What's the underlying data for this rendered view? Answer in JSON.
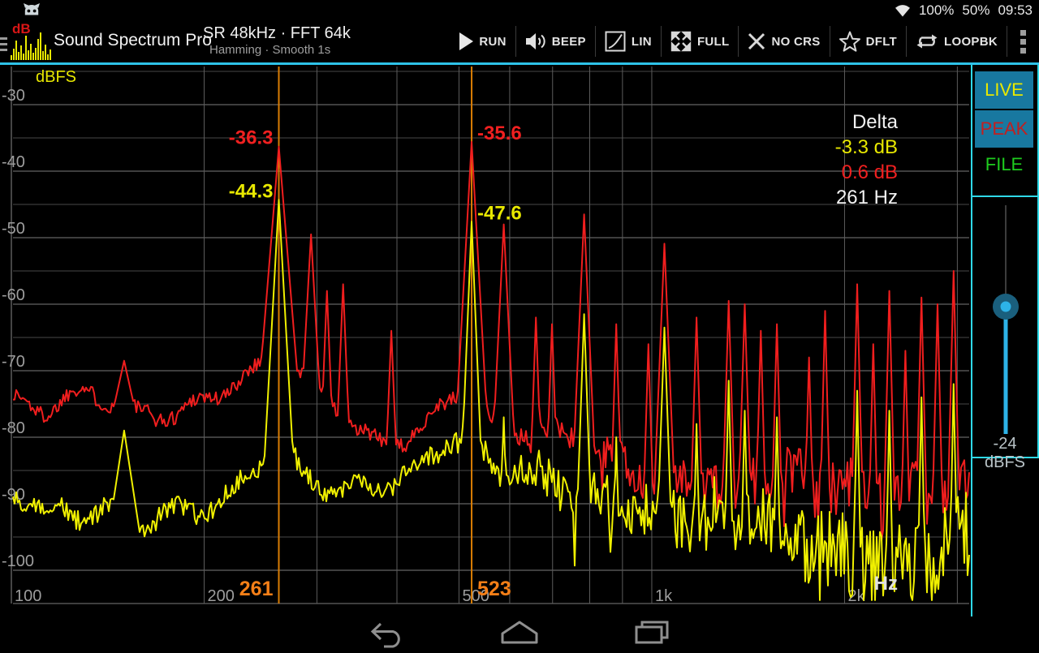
{
  "status_bar": {
    "battery": "100%",
    "second_level": "50%",
    "clock": "09:53"
  },
  "action_bar": {
    "app_title": "Sound Spectrum Pro",
    "logo_text": "dB",
    "logo_bars": [
      6,
      14,
      24,
      10,
      18,
      8,
      30,
      12,
      20,
      9,
      15,
      26,
      34,
      11,
      19,
      7,
      13
    ],
    "line1": "SR 48kHz · FFT 64k",
    "line2": "Hamming · Smooth 1s",
    "actions": [
      {
        "label": "RUN",
        "icon": "play"
      },
      {
        "label": "BEEP",
        "icon": "speaker"
      },
      {
        "label": "LIN",
        "icon": "lin-curve"
      },
      {
        "label": "FULL",
        "icon": "expand"
      },
      {
        "label": "NO CRS",
        "icon": "x-cross"
      },
      {
        "label": "DFLT",
        "icon": "star"
      },
      {
        "label": "LOOPBK",
        "icon": "loop"
      }
    ]
  },
  "sidebar": {
    "live": "LIVE",
    "peak": "PEAK",
    "file": "FILE",
    "slider_value": "-24 dBFS",
    "accent_color": "#2fd9e8",
    "button_bg": "#1878a0",
    "slider_color": "#2db3e8"
  },
  "delta_panel": {
    "title": "Delta",
    "live_delta": "-3.3 dB",
    "peak_delta": "0.6 dB",
    "freq_delta": "261 Hz"
  },
  "chart_data": {
    "type": "line",
    "y_axis": {
      "label": "dBFS",
      "top_db": -24,
      "bottom_db": -105,
      "grid_step_db": 5,
      "tick_labels": [
        -30,
        -40,
        -50,
        -60,
        -70,
        -80,
        -90,
        -100
      ]
    },
    "x_axis": {
      "label": "Hz",
      "scale": "log",
      "min_hz": 100,
      "max_hz": 3100,
      "gridlines_hz": [
        100,
        200,
        300,
        400,
        500,
        600,
        700,
        800,
        900,
        1000,
        2000,
        3000
      ],
      "tick_labels": [
        {
          "hz": 100,
          "label": "100"
        },
        {
          "hz": 200,
          "label": "200"
        },
        {
          "hz": 500,
          "label": "500"
        },
        {
          "hz": 1000,
          "label": "1k"
        },
        {
          "hz": 2000,
          "label": "2k"
        }
      ]
    },
    "cursors": [
      {
        "freq_hz": 261.6,
        "label": "261",
        "side": "left"
      },
      {
        "freq_hz": 523.25,
        "label": "523",
        "side": "right"
      }
    ],
    "cursor_color": "#d97d04",
    "cursor_label_color": "#f57f17",
    "peak_annotations": [
      {
        "text": "-36.3",
        "db": -36.3,
        "cursor": 0,
        "color": "#f02020"
      },
      {
        "text": "-44.3",
        "db": -44.3,
        "cursor": 0,
        "color": "#e8e800"
      },
      {
        "text": "-35.6",
        "db": -35.6,
        "cursor": 1,
        "color": "#f02020"
      },
      {
        "text": "-47.6",
        "db": -47.6,
        "cursor": 1,
        "color": "#e8e800"
      }
    ],
    "series": [
      {
        "name": "PEAK",
        "color": "#f01e1e",
        "seed": 1337,
        "noise_base": 1.2,
        "noise_grow_from": 550,
        "noise_grow": 0.0075,
        "dip_chance": 0.05,
        "dip_depth": 7,
        "floor": [
          [
            100,
            -75
          ],
          [
            114,
            -77
          ],
          [
            132,
            -74
          ],
          [
            157,
            -76
          ],
          [
            182,
            -75
          ],
          [
            205,
            -73
          ],
          [
            230,
            -71
          ],
          [
            251,
            -70
          ],
          [
            274,
            -70
          ],
          [
            309,
            -75
          ],
          [
            347,
            -79
          ],
          [
            378,
            -81
          ],
          [
            412,
            -79
          ],
          [
            450,
            -76
          ],
          [
            492,
            -73
          ],
          [
            537,
            -76
          ],
          [
            587,
            -79
          ],
          [
            660,
            -81
          ],
          [
            741,
            -81
          ],
          [
            832,
            -83
          ],
          [
            934,
            -84
          ],
          [
            1048,
            -85
          ],
          [
            1177,
            -86
          ],
          [
            1322,
            -87
          ],
          [
            1531,
            -87
          ],
          [
            1773,
            -88
          ],
          [
            2053,
            -88
          ],
          [
            2377,
            -89
          ],
          [
            2753,
            -88
          ],
          [
            3100,
            -85
          ]
        ],
        "peaks": [
          [
            150,
            -68.5,
            0.55
          ],
          [
            261.6,
            -36.3,
            1.5
          ],
          [
            293.7,
            -49.5,
            2.2
          ],
          [
            311,
            -58,
            3
          ],
          [
            329.6,
            -57,
            3
          ],
          [
            392,
            -64,
            3
          ],
          [
            523.25,
            -35.6,
            2.2
          ],
          [
            587.3,
            -48,
            2.5
          ],
          [
            659.3,
            -62,
            3.5
          ],
          [
            698.5,
            -63,
            3.5
          ],
          [
            784,
            -46.5,
            2.8
          ],
          [
            880,
            -63,
            4
          ],
          [
            987.8,
            -66,
            4
          ],
          [
            1046.5,
            -50.9,
            3
          ],
          [
            1174.7,
            -62,
            4
          ],
          [
            1318.5,
            -59.5,
            4
          ],
          [
            1396.9,
            -60,
            4
          ],
          [
            1480,
            -64,
            4.5
          ],
          [
            1568,
            -63,
            4.5
          ],
          [
            1760,
            -68,
            4.5
          ],
          [
            1864.7,
            -61,
            5
          ],
          [
            2093,
            -57,
            5
          ],
          [
            2217.5,
            -66,
            5
          ],
          [
            2349.3,
            -58,
            5
          ],
          [
            2489,
            -67,
            5
          ],
          [
            2637,
            -59,
            5
          ],
          [
            2793.8,
            -60,
            5
          ],
          [
            2960,
            -55,
            5
          ]
        ]
      },
      {
        "name": "LIVE",
        "color": "#f0f000",
        "seed": 4242,
        "noise_base": 1.5,
        "noise_grow_from": 500,
        "noise_grow": 0.009,
        "dip_chance": 0.06,
        "dip_depth": 9,
        "floor": [
          [
            100,
            -90
          ],
          [
            114,
            -92
          ],
          [
            129,
            -92
          ],
          [
            140,
            -90
          ],
          [
            157,
            -92
          ],
          [
            177,
            -90
          ],
          [
            199,
            -91
          ],
          [
            224,
            -89
          ],
          [
            244,
            -85
          ],
          [
            255,
            -82
          ],
          [
            266,
            -83
          ],
          [
            283,
            -86
          ],
          [
            309,
            -88
          ],
          [
            337,
            -87
          ],
          [
            368,
            -86
          ],
          [
            401,
            -85
          ],
          [
            438,
            -84
          ],
          [
            470,
            -81
          ],
          [
            492,
            -80
          ],
          [
            521,
            -82
          ],
          [
            567,
            -85
          ],
          [
            620,
            -86
          ],
          [
            696,
            -87
          ],
          [
            781,
            -88
          ],
          [
            877,
            -89
          ],
          [
            984,
            -90
          ],
          [
            1134,
            -92
          ],
          [
            1322,
            -93
          ],
          [
            1531,
            -95
          ],
          [
            1773,
            -96
          ],
          [
            2053,
            -97
          ],
          [
            2377,
            -98
          ],
          [
            2753,
            -98
          ],
          [
            3100,
            -96
          ]
        ],
        "peaks": [
          [
            150,
            -79,
            0.8
          ],
          [
            261.6,
            -44.3,
            2.2
          ],
          [
            523.25,
            -47.6,
            3
          ],
          [
            587.3,
            -77,
            4
          ],
          [
            784,
            -61.5,
            3.5
          ],
          [
            880,
            -80,
            5
          ],
          [
            1046.5,
            -63.5,
            3.5
          ],
          [
            1174.7,
            -78,
            5
          ],
          [
            1318.5,
            -71.5,
            5
          ],
          [
            1396.9,
            -76,
            5
          ],
          [
            1568,
            -77,
            5
          ],
          [
            2093,
            -73,
            6
          ],
          [
            2349.3,
            -76,
            6
          ],
          [
            2637,
            -74,
            6
          ],
          [
            2960,
            -72,
            6
          ]
        ]
      }
    ]
  }
}
